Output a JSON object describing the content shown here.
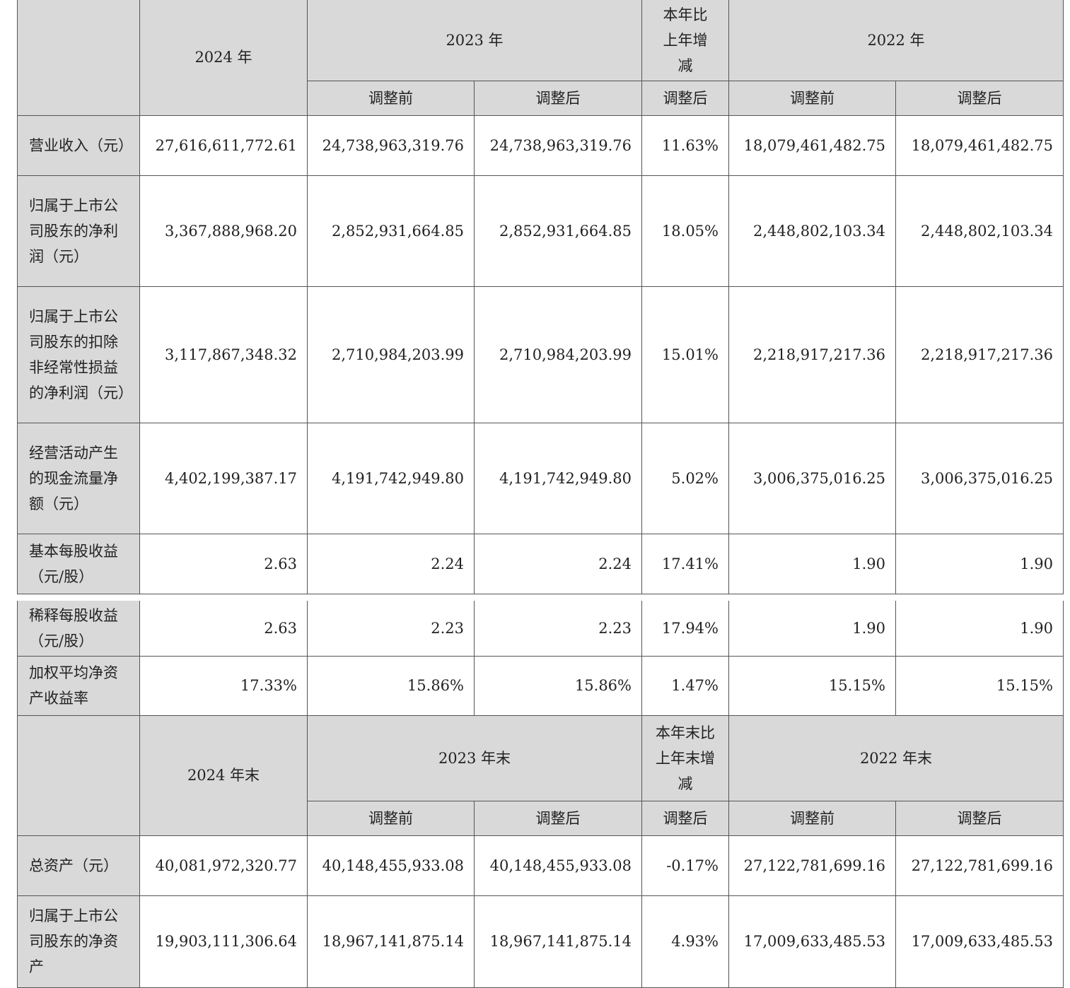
{
  "table1": {
    "header": {
      "blank": "",
      "y2024": "2024 年",
      "y2023": "2023 年",
      "change": "本年比上年增减",
      "y2022": "2022 年"
    },
    "subheader": [
      "调整前",
      "调整后",
      "调整后",
      "调整前",
      "调整后"
    ],
    "rows": [
      {
        "label": "营业收入（元）",
        "values": [
          "27,616,611,772.61",
          "24,738,963,319.76",
          "24,738,963,319.76",
          "11.63%",
          "18,079,461,482.75",
          "18,079,461,482.75"
        ]
      },
      {
        "label": "归属于上市公司股东的净利润（元）",
        "values": [
          "3,367,888,968.20",
          "2,852,931,664.85",
          "2,852,931,664.85",
          "18.05%",
          "2,448,802,103.34",
          "2,448,802,103.34"
        ]
      },
      {
        "label": "归属于上市公司股东的扣除非经常性损益的净利润（元）",
        "values": [
          "3,117,867,348.32",
          "2,710,984,203.99",
          "2,710,984,203.99",
          "15.01%",
          "2,218,917,217.36",
          "2,218,917,217.36"
        ]
      },
      {
        "label": "经营活动产生的现金流量净额（元）",
        "values": [
          "4,402,199,387.17",
          "4,191,742,949.80",
          "4,191,742,949.80",
          "5.02%",
          "3,006,375,016.25",
          "3,006,375,016.25"
        ]
      },
      {
        "label": "基本每股收益（元/股）",
        "values": [
          "2.63",
          "2.24",
          "2.24",
          "17.41%",
          "1.90",
          "1.90"
        ]
      }
    ]
  },
  "table2": {
    "rows_top": [
      {
        "label": "稀释每股收益（元/股）",
        "values": [
          "2.63",
          "2.23",
          "2.23",
          "17.94%",
          "1.90",
          "1.90"
        ]
      },
      {
        "label": "加权平均净资产收益率",
        "values": [
          "17.33%",
          "15.86%",
          "15.86%",
          "1.47%",
          "15.15%",
          "15.15%"
        ]
      }
    ],
    "header": {
      "blank": "",
      "y2024": "2024 年末",
      "y2023": "2023 年末",
      "change": "本年末比上年末增减",
      "y2022": "2022 年末"
    },
    "subheader": [
      "调整前",
      "调整后",
      "调整后",
      "调整前",
      "调整后"
    ],
    "rows": [
      {
        "label": "总资产（元）",
        "values": [
          "40,081,972,320.77",
          "40,148,455,933.08",
          "40,148,455,933.08",
          "-0.17%",
          "27,122,781,699.16",
          "27,122,781,699.16"
        ]
      },
      {
        "label": "归属于上市公司股东的净资产",
        "values": [
          "19,903,111,306.64",
          "18,967,141,875.14",
          "18,967,141,875.14",
          "4.93%",
          "17,009,633,485.53",
          "17,009,633,485.53"
        ]
      }
    ]
  }
}
